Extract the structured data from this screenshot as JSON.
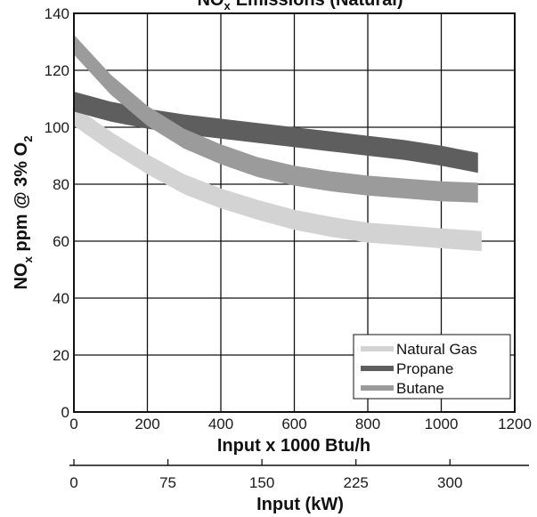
{
  "chart_data": {
    "type": "line",
    "title": "NO",
    "title_sub": "x",
    "title_rest": "Emissions (Natural)",
    "xlabel": "Input x 1000 Btu/h",
    "ylabel": {
      "main": "NO",
      "sub": "x",
      "rest": " ppm @ 3% O",
      "sub2": "2"
    },
    "secondary_xlabel": "Input (kW)",
    "xlim": [
      0,
      1200
    ],
    "ylim": [
      0,
      140
    ],
    "x_ticks": [
      0,
      200,
      400,
      600,
      800,
      1000,
      1200
    ],
    "y_ticks": [
      0,
      20,
      40,
      60,
      80,
      100,
      120,
      140
    ],
    "secondary_x_ticks": [
      0,
      75,
      150,
      225,
      300
    ],
    "grid": true,
    "legend_position": "bottom-right",
    "series": [
      {
        "name": "Natural Gas",
        "color": "#d3d3d3",
        "band_width": 7,
        "x": [
          0,
          100,
          200,
          300,
          400,
          500,
          600,
          700,
          800,
          900,
          1000,
          1110
        ],
        "y": [
          104,
          95,
          87,
          80,
          75,
          71,
          67.5,
          65,
          63,
          62,
          61,
          60
        ]
      },
      {
        "name": "Propane",
        "color": "#5e5e5e",
        "band_width": 7,
        "x": [
          0,
          100,
          200,
          300,
          400,
          500,
          600,
          700,
          800,
          900,
          1000,
          1100
        ],
        "y": [
          109,
          105.5,
          103,
          101,
          99.5,
          98,
          96.5,
          95,
          93.5,
          92,
          90,
          87.5
        ]
      },
      {
        "name": "Butane",
        "color": "#9b9b9b",
        "band_width": 7,
        "x": [
          0,
          100,
          200,
          300,
          400,
          500,
          600,
          700,
          800,
          900,
          1000,
          1100
        ],
        "y": [
          129,
          115,
          104,
          96,
          90.5,
          86,
          83,
          81,
          79.5,
          78.5,
          77.5,
          77
        ]
      }
    ]
  }
}
